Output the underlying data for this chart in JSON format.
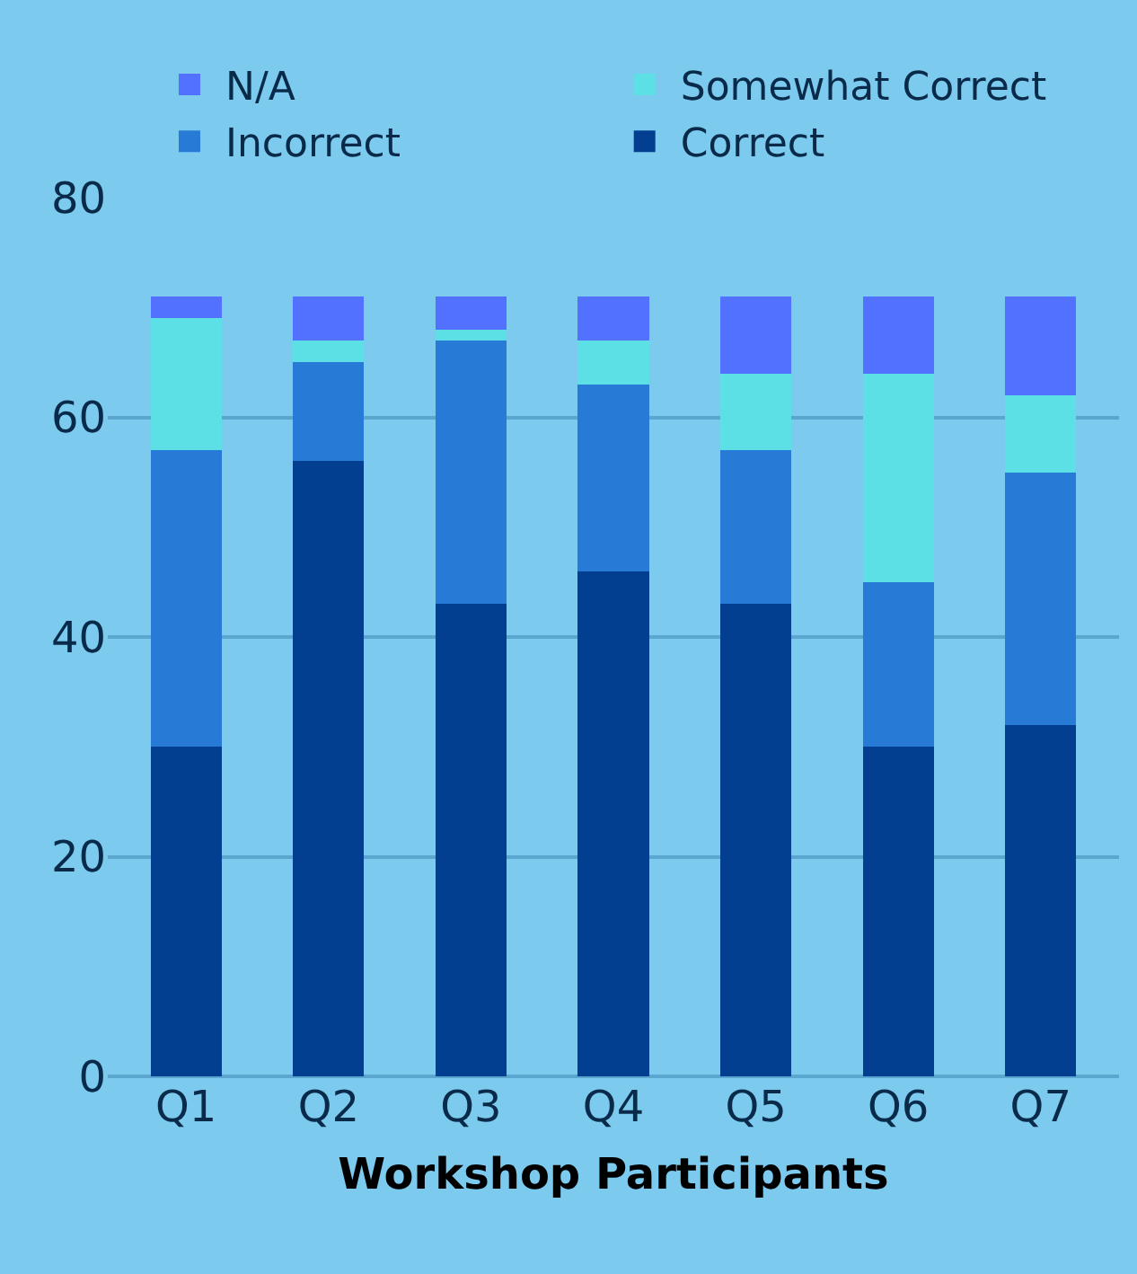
{
  "chart_data": {
    "type": "bar",
    "stacked": true,
    "xlabel": "Workshop Participants",
    "categories": [
      "Q1",
      "Q2",
      "Q3",
      "Q4",
      "Q5",
      "Q6",
      "Q7"
    ],
    "series": [
      {
        "name": "Correct",
        "color": "#033f91",
        "values": [
          30,
          56,
          43,
          46,
          43,
          30,
          32
        ]
      },
      {
        "name": "Incorrect",
        "color": "#277bd6",
        "values": [
          27,
          9,
          24,
          17,
          14,
          15,
          23
        ]
      },
      {
        "name": "Somewhat Correct",
        "color": "#5ce0e6",
        "values": [
          12,
          2,
          1,
          4,
          7,
          19,
          7
        ]
      },
      {
        "name": "N/A",
        "color": "#5271ff",
        "values": [
          2,
          4,
          3,
          4,
          7,
          7,
          9
        ]
      }
    ],
    "ylim": [
      0,
      80
    ],
    "yticks": [
      0,
      20,
      40,
      60,
      80
    ],
    "grid": "y",
    "legend": "top"
  }
}
